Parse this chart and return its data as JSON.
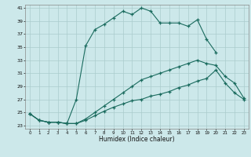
{
  "title": "",
  "xlabel": "Humidex (Indice chaleur)",
  "bg_color": "#cce8ea",
  "grid_color": "#aacccc",
  "line_color": "#1a6b5e",
  "xlim": [
    -0.5,
    23.5
  ],
  "ylim": [
    22.5,
    41.5
  ],
  "xticks": [
    0,
    1,
    2,
    3,
    4,
    5,
    6,
    7,
    8,
    9,
    10,
    11,
    12,
    13,
    14,
    15,
    16,
    17,
    18,
    19,
    20,
    21,
    22,
    23
  ],
  "yticks": [
    23,
    25,
    27,
    29,
    31,
    33,
    35,
    37,
    39,
    41
  ],
  "line1_x": [
    0,
    1,
    2,
    3,
    4,
    5,
    6,
    7,
    8,
    9,
    10,
    11,
    12,
    13,
    14,
    15,
    16,
    17,
    18,
    19,
    20
  ],
  "line1_y": [
    24.8,
    23.8,
    23.5,
    23.5,
    23.3,
    27.0,
    35.2,
    37.7,
    38.5,
    39.5,
    40.5,
    40.0,
    41.0,
    40.5,
    38.7,
    38.7,
    38.7,
    38.2,
    39.2,
    36.2,
    34.2
  ],
  "line2_x": [
    0,
    1,
    2,
    3,
    4,
    5,
    6,
    7,
    8,
    9,
    10,
    11,
    12,
    13,
    14,
    15,
    16,
    17,
    18,
    19,
    20,
    21,
    22,
    23
  ],
  "line2_y": [
    24.8,
    23.8,
    23.5,
    23.5,
    23.3,
    23.3,
    24.0,
    25.0,
    26.0,
    27.0,
    28.0,
    29.0,
    30.0,
    30.5,
    31.0,
    31.5,
    32.0,
    32.5,
    33.0,
    32.5,
    32.2,
    30.5,
    29.5,
    27.2
  ],
  "line3_x": [
    0,
    1,
    2,
    3,
    4,
    5,
    6,
    7,
    8,
    9,
    10,
    11,
    12,
    13,
    14,
    15,
    16,
    17,
    18,
    19,
    20,
    21,
    22,
    23
  ],
  "line3_y": [
    24.8,
    23.8,
    23.5,
    23.5,
    23.3,
    23.3,
    23.8,
    24.5,
    25.2,
    25.8,
    26.3,
    26.8,
    27.0,
    27.5,
    27.8,
    28.2,
    28.8,
    29.2,
    29.8,
    30.2,
    31.5,
    29.5,
    28.0,
    27.0
  ]
}
